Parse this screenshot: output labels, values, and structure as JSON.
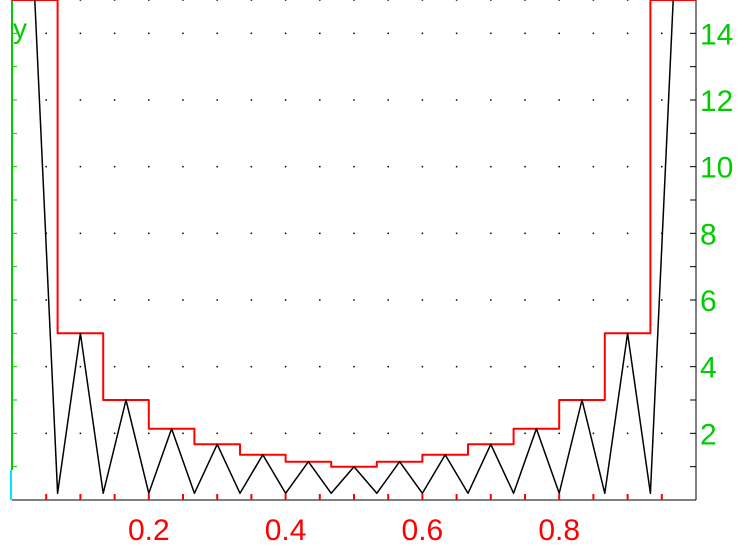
{
  "chart_data": {
    "type": "line",
    "xlabel": "",
    "ylabel": "y",
    "xlim": [
      0,
      1
    ],
    "ylim": [
      0,
      15
    ],
    "grid": "dotted",
    "x_ticks": [
      "0.2",
      "0.4",
      "0.6",
      "0.8"
    ],
    "y_ticks": [
      "2",
      "4",
      "6",
      "8",
      "10",
      "12",
      "14"
    ],
    "colors": {
      "step_series": "#ff0000",
      "oscillating_series": "#000000",
      "y_axis": "#00cc00",
      "x_ticks": "#ff0000",
      "grid": "#000000"
    },
    "series": [
      {
        "kind": "step",
        "x": [
          0,
          0.0667,
          0.0667,
          0.1333,
          0.1333,
          0.2,
          0.2,
          0.2667,
          0.2667,
          0.3333,
          0.3333,
          0.4,
          0.4,
          0.4667,
          0.4667,
          0.5333,
          0.5333,
          0.6,
          0.6,
          0.6667,
          0.6667,
          0.7333,
          0.7333,
          0.8,
          0.8,
          0.8667,
          0.8667,
          0.9333,
          0.9333,
          1
        ],
        "y": [
          15,
          15,
          5,
          5,
          3,
          3,
          2.14,
          2.14,
          1.67,
          1.67,
          1.36,
          1.36,
          1.15,
          1.15,
          1.0,
          1.0,
          1.15,
          1.15,
          1.36,
          1.36,
          1.67,
          1.67,
          2.14,
          2.14,
          3,
          3,
          5,
          5,
          15,
          15
        ]
      },
      {
        "kind": "line",
        "x": [
          0.0333,
          0.0667,
          0.1,
          0.1333,
          0.1667,
          0.2,
          0.2333,
          0.2667,
          0.3,
          0.3333,
          0.3667,
          0.4,
          0.4333,
          0.4667,
          0.5,
          0.5333,
          0.5667,
          0.6,
          0.6333,
          0.6667,
          0.7,
          0.7333,
          0.7667,
          0.8,
          0.8333,
          0.8667,
          0.9,
          0.9333,
          0.9667
        ],
        "y": [
          15,
          0.2,
          5,
          0.2,
          3,
          0.2,
          2.14,
          0.2,
          1.67,
          0.2,
          1.36,
          0.2,
          1.15,
          0.2,
          1.0,
          0.2,
          1.15,
          0.2,
          1.36,
          0.2,
          1.67,
          0.2,
          2.14,
          0.2,
          3,
          0.2,
          5,
          0.2,
          15
        ]
      }
    ]
  }
}
